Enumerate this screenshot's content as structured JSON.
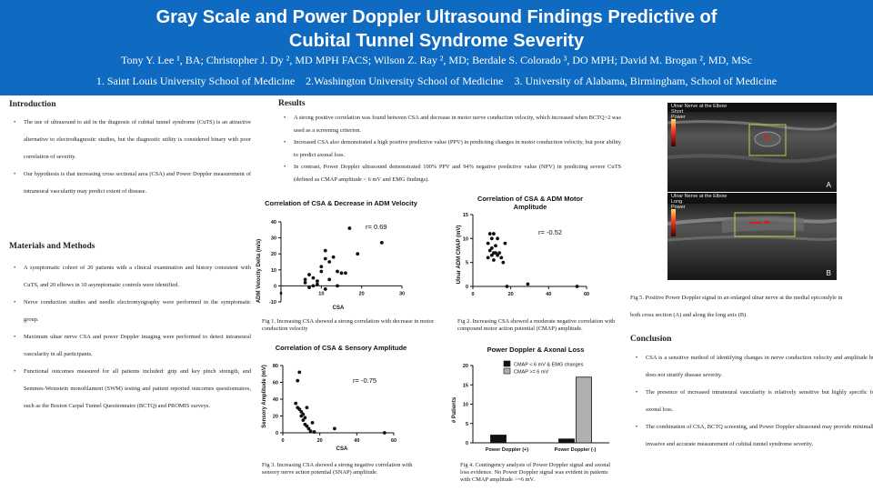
{
  "header": {
    "title_line1": "Gray Scale and Power Doppler Ultrasound Findings Predictive of",
    "title_line2": "Cubital Tunnel Syndrome Severity",
    "authors": "Tony Y. Lee ¹, BA; Christopher J. Dy ², MD MPH FACS; Wilson Z. Ray ², MD; Berdale S. Colorado ³, DO MPH; David M. Brogan ², MD, MSc",
    "affiliations": "1. Saint Louis University School of Medicine    2.Washington University School of Medicine    3. University of Alabama, Birmingham, School of Medicine"
  },
  "colors": {
    "header_bg": "#0f6bc2",
    "doppler": "#d42020",
    "roi_box": "#c8c850"
  },
  "introduction": {
    "heading": "Introduction",
    "bullets": [
      "The use of ultrasound to aid in the diagnosis of cubital tunnel syndrome (CuTS) is an attractive alternative to electrodiagnostic studies, but the diagnostic utility is considered binary with poor correlation of severity.",
      "Our hypothesis is that increasing cross sectional area (CSA) and Power Doppler measurement of intraneural vascularity may predict extent of disease."
    ]
  },
  "methods": {
    "heading": "Materials and Methods",
    "bullets": [
      "A symptomatic cohort of 20 patients with a clinical examination and history consistent with CuTS, and 20 elbows in 10 asymptomatic controls were identified.",
      "Nerve conduction studies and needle electromyography were performed in the symptomatic group.",
      "Maximum ulnar nerve CSA and power Doppler imaging were performed to detect intraneural vascularity in all participants.",
      "Functional outcomes measured for all patients included: grip and key pinch strength, and Semmes-Weinstein monofilament (SWM) testing and patient reported outcomes questionnaires, such as the Boston Carpal Tunnel Questionnaire (BCTQ) and PROMIS surveys."
    ]
  },
  "results": {
    "heading": "Results",
    "bullets": [
      "A strong positive correlation was found between CSA and decrease in motor nerve conduction velocity, which increased when BCTQ>2 was used as a screening criterion.",
      "Increased CSA also demonstrated a high positive predictive value (PPV) in predicting changes in motor conduction velocity, but poor ability to predict axonal loss.",
      "In contrast, Power Doppler ultrasound demonstrated 100% PPV and 94% negative predictive value (NPV) in predicting severe CuTS (defined as CMAP amplitude < 6 mV and EMG findings)."
    ]
  },
  "conclusion": {
    "heading": "Conclusion",
    "bullets": [
      "CSA is a sensitive method of identifying changes in nerve conduction velocity and amplitude but does not stratify disease severity.",
      "The presence of increased intraneural vascularity is relatively sensitive but highly specific for axonal loss.",
      "The combination of CSA, BCTQ screening, and Power Doppler ultrasound may provide minimally invasive and accurate measurement of cubital tunnel syndrome severity."
    ]
  },
  "captions": {
    "fig1": "Fig 1. Increasing CSA showed a strong correlation with decrease in motor conduction velocity",
    "fig2": "Fig 2. Increasing CSA showed a moderate negative correlation with compound motor action potential (CMAP) amplitude.",
    "fig3": "Fig 3. Increasing CSA showed a strong negative correlation with sensory nerve action potential (SNAP) amplitude.",
    "fig4": "Fig 4. Contingency analysis of Power Doppler signal and axonal loss evidence. No Power Doppler signal was evident in patients with CMAP amplitude >=6 mV.",
    "fig5": "Fig 5. Positive Power Doppler signal in an enlarged ulnar nerve at the medial epicondyle in both cross section (A) and along the long axis (B)."
  },
  "ultrasound": {
    "a": {
      "label_l1": "Ulnar Nerve at the Elbow",
      "label_l2": "Short",
      "label_l3": "Power",
      "letter": "A"
    },
    "b": {
      "label_l1": "Ulnar Nerve at the Elbow",
      "label_l2": "Long",
      "label_l3": "Power",
      "letter": "B"
    }
  },
  "chart_data": [
    {
      "type": "scatter",
      "title": "Correlation of CSA & Decrease in ADM Velocity",
      "xlabel": "CSA",
      "ylabel": "ADM Velocity Delta (m/s)",
      "xlim": [
        0,
        30
      ],
      "ylim": [
        -10,
        40
      ],
      "xticks": [
        0,
        10,
        20,
        30
      ],
      "yticks": [
        -10,
        0,
        10,
        20,
        30,
        40
      ],
      "annotation": "r= 0.69",
      "points": [
        [
          6,
          2
        ],
        [
          6,
          4
        ],
        [
          7,
          -1
        ],
        [
          7,
          7
        ],
        [
          8,
          0
        ],
        [
          8,
          5
        ],
        [
          9,
          1
        ],
        [
          9,
          3
        ],
        [
          10,
          9
        ],
        [
          10,
          12
        ],
        [
          11,
          -2
        ],
        [
          11,
          17
        ],
        [
          11,
          22
        ],
        [
          12,
          4
        ],
        [
          12,
          15
        ],
        [
          13,
          18
        ],
        [
          14,
          0
        ],
        [
          14,
          9
        ],
        [
          15,
          8
        ],
        [
          16,
          8
        ],
        [
          17,
          36
        ],
        [
          19,
          20
        ],
        [
          25,
          27
        ]
      ]
    },
    {
      "type": "scatter",
      "title": "Correlation of CSA & ADM Motor Amplitude",
      "xlabel": "CSA",
      "ylabel": "Ulnar ADM CMAP (mV)",
      "xlim": [
        0,
        60
      ],
      "ylim": [
        0,
        15
      ],
      "xticks": [
        0,
        20,
        40,
        60
      ],
      "yticks": [
        0,
        5,
        10,
        15
      ],
      "annotation": "r= -0.52",
      "points": [
        [
          8,
          6
        ],
        [
          8,
          9
        ],
        [
          9,
          7.5
        ],
        [
          9,
          11
        ],
        [
          10,
          6.5
        ],
        [
          10,
          8
        ],
        [
          10,
          10
        ],
        [
          11,
          5.5
        ],
        [
          11,
          7
        ],
        [
          11,
          11
        ],
        [
          12,
          7
        ],
        [
          12,
          8.5
        ],
        [
          13,
          6.5
        ],
        [
          13,
          10
        ],
        [
          14,
          7
        ],
        [
          15,
          6
        ],
        [
          16,
          5
        ],
        [
          17,
          9
        ],
        [
          18,
          0
        ],
        [
          29,
          0.5
        ],
        [
          55,
          0
        ]
      ]
    },
    {
      "type": "scatter",
      "title": "Correlation of CSA & Sensory Amplitude",
      "xlabel": "CSA",
      "ylabel": "Sensory Amplitude (mV)",
      "xlim": [
        0,
        60
      ],
      "ylim": [
        0,
        80
      ],
      "xticks": [
        0,
        20,
        40,
        60
      ],
      "yticks": [
        0,
        20,
        40,
        60,
        80
      ],
      "annotation": "r= -0.75",
      "points": [
        [
          7,
          35
        ],
        [
          8,
          30
        ],
        [
          8,
          62
        ],
        [
          9,
          28
        ],
        [
          9,
          72
        ],
        [
          10,
          20
        ],
        [
          10,
          25
        ],
        [
          11,
          15
        ],
        [
          11,
          22
        ],
        [
          12,
          10
        ],
        [
          12,
          18
        ],
        [
          13,
          8
        ],
        [
          13,
          30
        ],
        [
          14,
          5
        ],
        [
          15,
          2
        ],
        [
          16,
          12
        ],
        [
          17,
          1
        ],
        [
          28,
          5
        ],
        [
          55,
          0
        ]
      ]
    },
    {
      "type": "bar",
      "title": "Power Doppler & Axonal Loss",
      "ylabel": "# Patients",
      "categories": [
        "Power Doppler (+)",
        "Power Doppler (-)"
      ],
      "ylim": [
        0,
        20
      ],
      "yticks": [
        0,
        5,
        10,
        15,
        20
      ],
      "series": [
        {
          "name": "CMAP < 6 mV & EMG changes",
          "color": "#111111",
          "values": [
            2,
            1
          ]
        },
        {
          "name": "CMAP >= 6 mV",
          "color": "#b0b0b0",
          "values": [
            0,
            17
          ]
        }
      ]
    }
  ]
}
